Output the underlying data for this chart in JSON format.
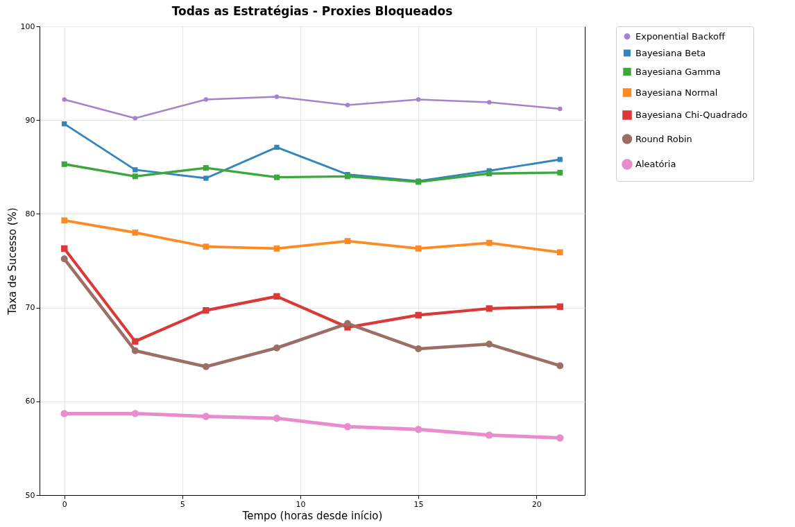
{
  "chart_data": {
    "type": "line",
    "title": "Todas as Estratégias - Proxies Bloqueados",
    "xlabel": "Tempo (horas desde início)",
    "ylabel": "Taxa de Sucesso (%)",
    "x": [
      0,
      3,
      6,
      9,
      12,
      15,
      18,
      21
    ],
    "xlim": [
      -1.05,
      22.05
    ],
    "xticks": [
      0,
      5,
      10,
      15,
      20
    ],
    "ylim": [
      50,
      100
    ],
    "yticks": [
      50,
      60,
      70,
      80,
      90,
      100
    ],
    "grid": true,
    "legend": "top right",
    "series": [
      {
        "name": "Exponential Backoff",
        "color": "#a682ca",
        "marker": "circle",
        "values": [
          92.2,
          90.2,
          92.2,
          92.5,
          91.6,
          92.2,
          91.9,
          91.2
        ]
      },
      {
        "name": "Bayesiana Beta",
        "color": "#3385bd",
        "marker": "square",
        "values": [
          89.6,
          84.7,
          83.8,
          87.1,
          84.2,
          83.5,
          84.6,
          85.8
        ]
      },
      {
        "name": "Bayesiana Gamma",
        "color": "#3ca73c",
        "marker": "square",
        "values": [
          85.3,
          84.0,
          84.9,
          83.9,
          84.0,
          83.4,
          84.3,
          84.4
        ]
      },
      {
        "name": "Bayesiana Normal",
        "color": "#ff8a24",
        "marker": "square",
        "values": [
          79.3,
          78.0,
          76.5,
          76.3,
          77.1,
          76.3,
          76.9,
          75.9
        ]
      },
      {
        "name": "Bayesiana Chi-Quadrado",
        "color": "#db3838",
        "marker": "square",
        "values": [
          76.3,
          66.4,
          69.7,
          71.2,
          67.9,
          69.2,
          69.9,
          70.1
        ]
      },
      {
        "name": "Round Robin",
        "color": "#9c6e65",
        "marker": "circle",
        "values": [
          75.2,
          65.4,
          63.7,
          65.7,
          68.3,
          65.6,
          66.1,
          63.8
        ]
      },
      {
        "name": "Aleatória",
        "color": "#e88ccc",
        "marker": "circle",
        "values": [
          58.7,
          58.7,
          58.4,
          58.2,
          57.3,
          57.0,
          56.4,
          56.1
        ]
      }
    ]
  }
}
